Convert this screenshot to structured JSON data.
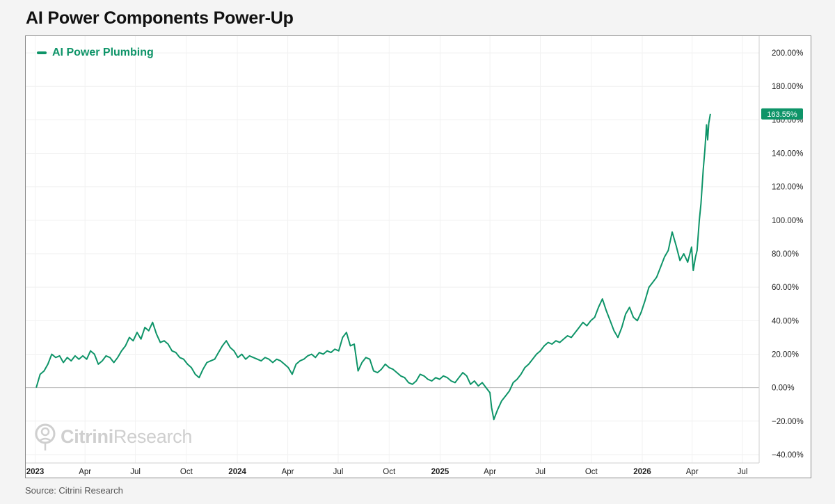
{
  "title": "AI Power Components Power-Up",
  "source": "Source: Citrini Research",
  "watermark": {
    "bold": "Citrini",
    "regular": "Research"
  },
  "chart_data": {
    "type": "line",
    "title": "AI Power Components Power-Up",
    "xlabel": "",
    "ylabel": "",
    "ylim": [
      -45,
      210
    ],
    "xlim": [
      "2022-12-15",
      "2026-07-31"
    ],
    "y_ticks": [
      {
        "value": 200,
        "label": "200.00%"
      },
      {
        "value": 180,
        "label": "180.00%"
      },
      {
        "value": 160,
        "label": "160.00%"
      },
      {
        "value": 140,
        "label": "140.00%"
      },
      {
        "value": 120,
        "label": "120.00%"
      },
      {
        "value": 100,
        "label": "100.00%"
      },
      {
        "value": 80,
        "label": "80.00%"
      },
      {
        "value": 60,
        "label": "60.00%"
      },
      {
        "value": 40,
        "label": "40.00%"
      },
      {
        "value": 20,
        "label": "20.00%"
      },
      {
        "value": 0,
        "label": "0.00%"
      },
      {
        "value": -20,
        "label": "−20.00%"
      },
      {
        "value": -40,
        "label": "−40.00%"
      }
    ],
    "x_ticks": [
      {
        "date": "2023-01-01",
        "label": "2023",
        "major": true
      },
      {
        "date": "2023-04-01",
        "label": "Apr",
        "major": false
      },
      {
        "date": "2023-07-01",
        "label": "Jul",
        "major": false
      },
      {
        "date": "2023-10-01",
        "label": "Oct",
        "major": false
      },
      {
        "date": "2024-01-01",
        "label": "2024",
        "major": true
      },
      {
        "date": "2024-04-01",
        "label": "Apr",
        "major": false
      },
      {
        "date": "2024-07-01",
        "label": "Jul",
        "major": false
      },
      {
        "date": "2024-10-01",
        "label": "Oct",
        "major": false
      },
      {
        "date": "2025-01-01",
        "label": "2025",
        "major": true
      },
      {
        "date": "2025-04-01",
        "label": "Apr",
        "major": false
      },
      {
        "date": "2025-07-01",
        "label": "Jul",
        "major": false
      },
      {
        "date": "2025-10-01",
        "label": "Oct",
        "major": false
      },
      {
        "date": "2026-01-01",
        "label": "2026",
        "major": true
      },
      {
        "date": "2026-04-01",
        "label": "Apr",
        "major": false
      },
      {
        "date": "2026-07-01",
        "label": "Jul",
        "major": false
      }
    ],
    "grid": true,
    "legend": "top-left",
    "last_value_label": "163.55%",
    "series": [
      {
        "name": "AI Power Plumbing",
        "color": "#0e9468",
        "points": [
          [
            "2023-01-03",
            0
          ],
          [
            "2023-01-10",
            8
          ],
          [
            "2023-01-17",
            10
          ],
          [
            "2023-01-24",
            14
          ],
          [
            "2023-01-31",
            20
          ],
          [
            "2023-02-07",
            18
          ],
          [
            "2023-02-14",
            19
          ],
          [
            "2023-02-21",
            15
          ],
          [
            "2023-02-28",
            18
          ],
          [
            "2023-03-07",
            16
          ],
          [
            "2023-03-14",
            19
          ],
          [
            "2023-03-21",
            17
          ],
          [
            "2023-03-28",
            19
          ],
          [
            "2023-04-04",
            17
          ],
          [
            "2023-04-11",
            22
          ],
          [
            "2023-04-18",
            20
          ],
          [
            "2023-04-25",
            14
          ],
          [
            "2023-05-02",
            16
          ],
          [
            "2023-05-09",
            19
          ],
          [
            "2023-05-16",
            18
          ],
          [
            "2023-05-23",
            15
          ],
          [
            "2023-05-30",
            18
          ],
          [
            "2023-06-06",
            22
          ],
          [
            "2023-06-13",
            25
          ],
          [
            "2023-06-20",
            30
          ],
          [
            "2023-06-27",
            28
          ],
          [
            "2023-07-04",
            33
          ],
          [
            "2023-07-11",
            29
          ],
          [
            "2023-07-18",
            36
          ],
          [
            "2023-07-25",
            34
          ],
          [
            "2023-08-01",
            39
          ],
          [
            "2023-08-08",
            32
          ],
          [
            "2023-08-15",
            27
          ],
          [
            "2023-08-22",
            28
          ],
          [
            "2023-08-29",
            26
          ],
          [
            "2023-09-05",
            22
          ],
          [
            "2023-09-12",
            21
          ],
          [
            "2023-09-19",
            18
          ],
          [
            "2023-09-26",
            17
          ],
          [
            "2023-10-03",
            14
          ],
          [
            "2023-10-10",
            12
          ],
          [
            "2023-10-17",
            8
          ],
          [
            "2023-10-24",
            6
          ],
          [
            "2023-10-31",
            11
          ],
          [
            "2023-11-07",
            15
          ],
          [
            "2023-11-14",
            16
          ],
          [
            "2023-11-21",
            17
          ],
          [
            "2023-11-28",
            21
          ],
          [
            "2023-12-05",
            25
          ],
          [
            "2023-12-12",
            28
          ],
          [
            "2023-12-19",
            24
          ],
          [
            "2023-12-26",
            22
          ],
          [
            "2024-01-02",
            18
          ],
          [
            "2024-01-09",
            20
          ],
          [
            "2024-01-16",
            17
          ],
          [
            "2024-01-23",
            19
          ],
          [
            "2024-01-30",
            18
          ],
          [
            "2024-02-06",
            17
          ],
          [
            "2024-02-13",
            16
          ],
          [
            "2024-02-20",
            18
          ],
          [
            "2024-02-27",
            17
          ],
          [
            "2024-03-05",
            15
          ],
          [
            "2024-03-12",
            17
          ],
          [
            "2024-03-19",
            16
          ],
          [
            "2024-03-26",
            14
          ],
          [
            "2024-04-02",
            12
          ],
          [
            "2024-04-09",
            8
          ],
          [
            "2024-04-16",
            14
          ],
          [
            "2024-04-23",
            16
          ],
          [
            "2024-04-30",
            17
          ],
          [
            "2024-05-07",
            19
          ],
          [
            "2024-05-14",
            20
          ],
          [
            "2024-05-21",
            18
          ],
          [
            "2024-05-28",
            21
          ],
          [
            "2024-06-04",
            20
          ],
          [
            "2024-06-11",
            22
          ],
          [
            "2024-06-18",
            21
          ],
          [
            "2024-06-25",
            23
          ],
          [
            "2024-07-02",
            22
          ],
          [
            "2024-07-09",
            30
          ],
          [
            "2024-07-16",
            33
          ],
          [
            "2024-07-23",
            25
          ],
          [
            "2024-07-30",
            26
          ],
          [
            "2024-08-06",
            10
          ],
          [
            "2024-08-13",
            15
          ],
          [
            "2024-08-20",
            18
          ],
          [
            "2024-08-27",
            17
          ],
          [
            "2024-09-03",
            10
          ],
          [
            "2024-09-10",
            9
          ],
          [
            "2024-09-17",
            11
          ],
          [
            "2024-09-24",
            14
          ],
          [
            "2024-10-01",
            12
          ],
          [
            "2024-10-08",
            11
          ],
          [
            "2024-10-15",
            9
          ],
          [
            "2024-10-22",
            7
          ],
          [
            "2024-10-29",
            6
          ],
          [
            "2024-11-05",
            3
          ],
          [
            "2024-11-12",
            2
          ],
          [
            "2024-11-19",
            4
          ],
          [
            "2024-11-26",
            8
          ],
          [
            "2024-12-03",
            7
          ],
          [
            "2024-12-10",
            5
          ],
          [
            "2024-12-17",
            4
          ],
          [
            "2024-12-24",
            6
          ],
          [
            "2024-12-31",
            5
          ],
          [
            "2025-01-07",
            7
          ],
          [
            "2025-01-14",
            6
          ],
          [
            "2025-01-21",
            4
          ],
          [
            "2025-01-28",
            3
          ],
          [
            "2025-02-04",
            6
          ],
          [
            "2025-02-11",
            9
          ],
          [
            "2025-02-18",
            7
          ],
          [
            "2025-02-25",
            2
          ],
          [
            "2025-03-04",
            4
          ],
          [
            "2025-03-11",
            1
          ],
          [
            "2025-03-18",
            3
          ],
          [
            "2025-03-25",
            0
          ],
          [
            "2025-04-01",
            -3
          ],
          [
            "2025-04-04",
            -12
          ],
          [
            "2025-04-08",
            -19
          ],
          [
            "2025-04-15",
            -13
          ],
          [
            "2025-04-22",
            -8
          ],
          [
            "2025-04-29",
            -5
          ],
          [
            "2025-05-06",
            -2
          ],
          [
            "2025-05-13",
            3
          ],
          [
            "2025-05-20",
            5
          ],
          [
            "2025-05-27",
            8
          ],
          [
            "2025-06-03",
            12
          ],
          [
            "2025-06-10",
            14
          ],
          [
            "2025-06-17",
            17
          ],
          [
            "2025-06-24",
            20
          ],
          [
            "2025-07-01",
            22
          ],
          [
            "2025-07-08",
            25
          ],
          [
            "2025-07-15",
            27
          ],
          [
            "2025-07-22",
            26
          ],
          [
            "2025-07-29",
            28
          ],
          [
            "2025-08-05",
            27
          ],
          [
            "2025-08-12",
            29
          ],
          [
            "2025-08-19",
            31
          ],
          [
            "2025-08-26",
            30
          ],
          [
            "2025-09-02",
            33
          ],
          [
            "2025-09-09",
            36
          ],
          [
            "2025-09-16",
            39
          ],
          [
            "2025-09-23",
            37
          ],
          [
            "2025-09-30",
            40
          ],
          [
            "2025-10-07",
            42
          ],
          [
            "2025-10-14",
            48
          ],
          [
            "2025-10-21",
            53
          ],
          [
            "2025-10-28",
            46
          ],
          [
            "2025-11-04",
            40
          ],
          [
            "2025-11-11",
            34
          ],
          [
            "2025-11-18",
            30
          ],
          [
            "2025-11-25",
            36
          ],
          [
            "2025-12-02",
            44
          ],
          [
            "2025-12-09",
            48
          ],
          [
            "2025-12-16",
            42
          ],
          [
            "2025-12-23",
            40
          ],
          [
            "2025-12-30",
            45
          ],
          [
            "2026-01-06",
            52
          ],
          [
            "2026-01-13",
            60
          ],
          [
            "2026-01-20",
            63
          ],
          [
            "2026-01-27",
            66
          ],
          [
            "2026-02-03",
            72
          ],
          [
            "2026-02-10",
            78
          ],
          [
            "2026-02-17",
            82
          ],
          [
            "2026-02-24",
            93
          ],
          [
            "2026-03-03",
            85
          ],
          [
            "2026-03-10",
            76
          ],
          [
            "2026-03-17",
            80
          ],
          [
            "2026-03-24",
            75
          ],
          [
            "2026-03-31",
            84
          ],
          [
            "2026-04-03",
            70
          ],
          [
            "2026-04-07",
            78
          ],
          [
            "2026-04-10",
            82
          ],
          [
            "2026-04-14",
            100
          ],
          [
            "2026-04-17",
            110
          ],
          [
            "2026-04-21",
            130
          ],
          [
            "2026-04-24",
            142
          ],
          [
            "2026-04-27",
            157
          ],
          [
            "2026-04-29",
            148
          ],
          [
            "2026-05-01",
            158
          ],
          [
            "2026-05-04",
            163.55
          ]
        ]
      }
    ]
  }
}
